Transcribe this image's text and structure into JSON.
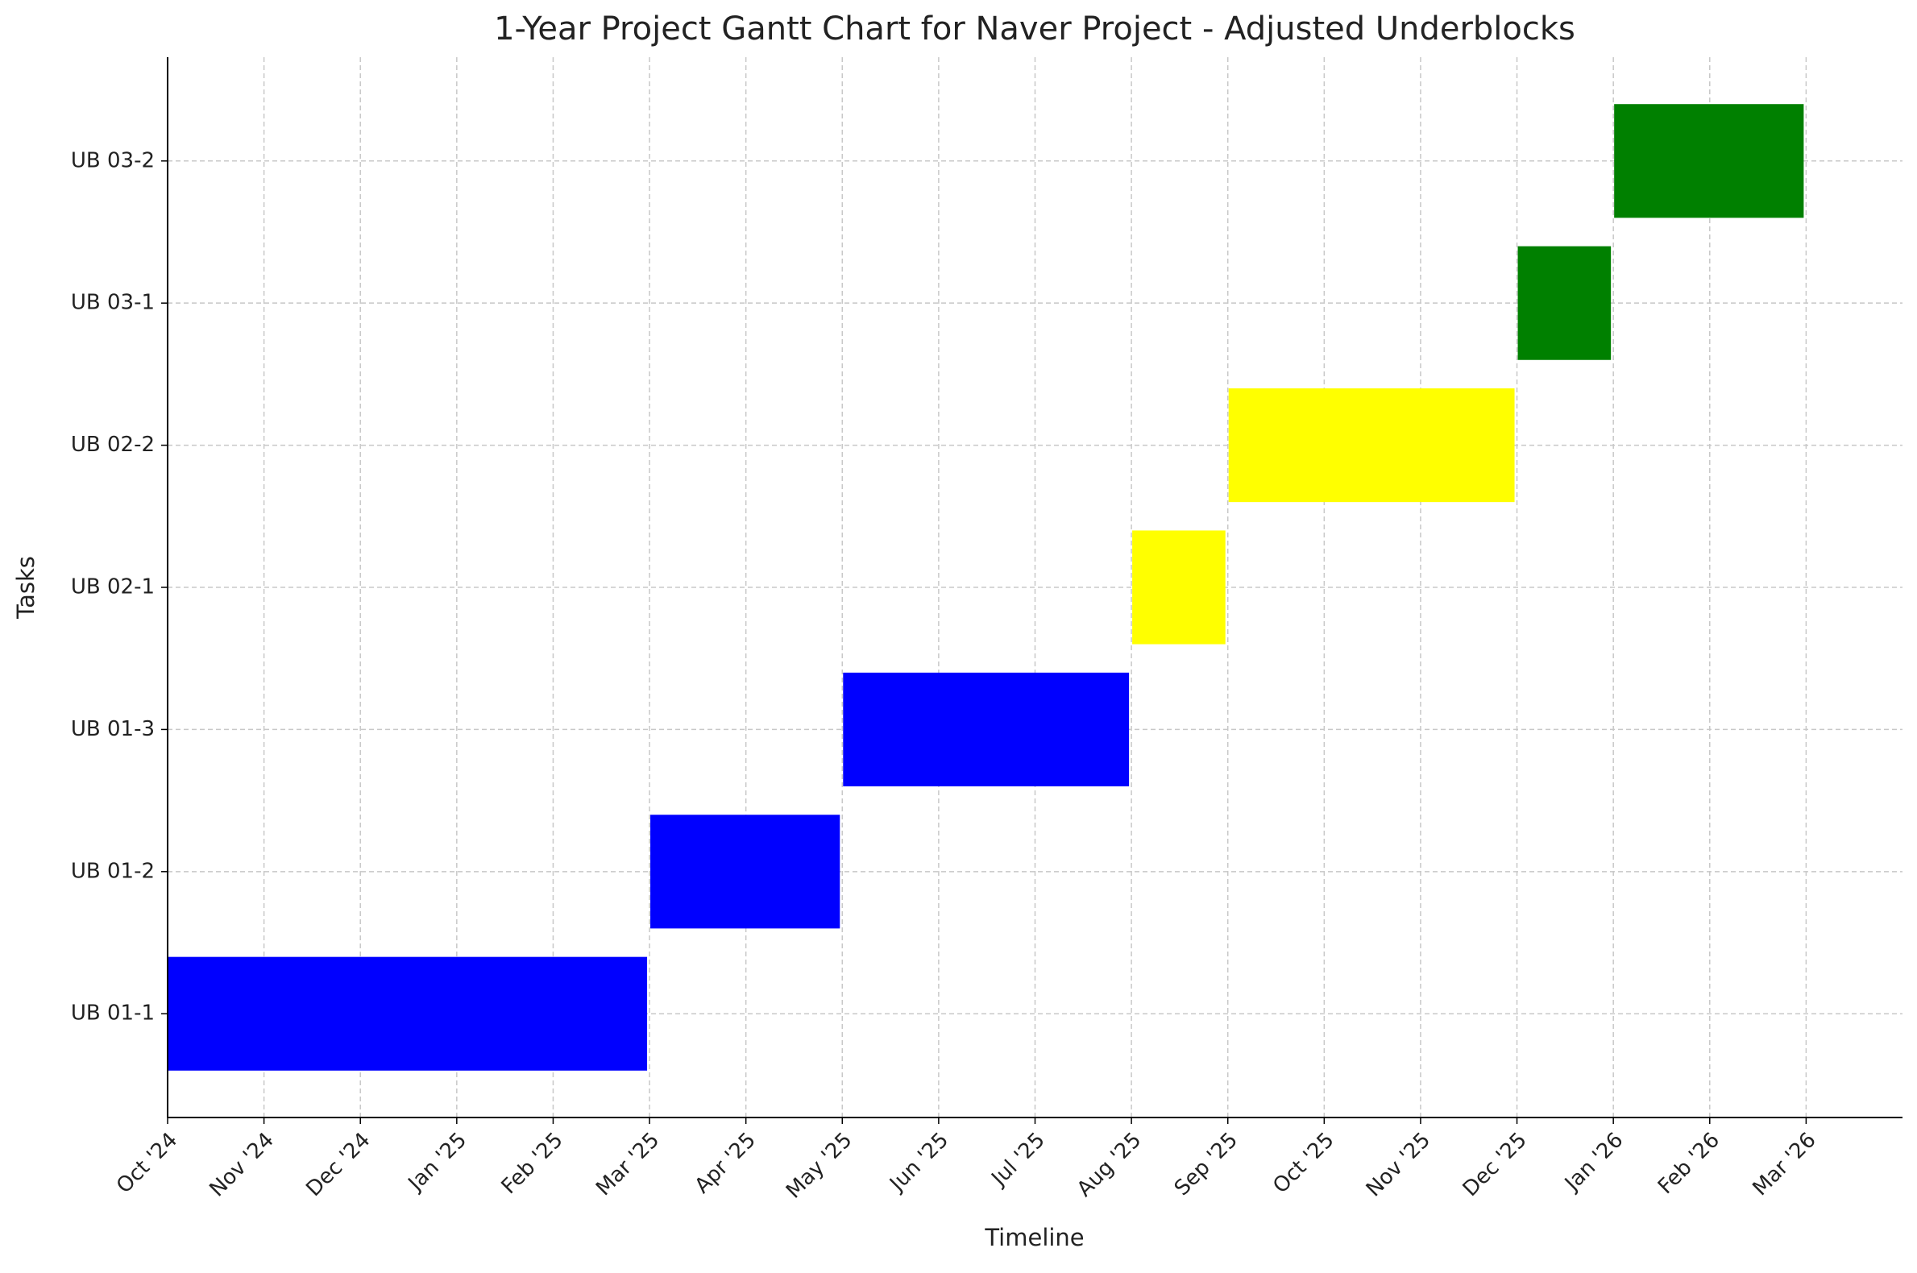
{
  "chart_data": {
    "type": "gantt",
    "title": "1-Year Project Gantt Chart for Naver Project - Adjusted Underblocks",
    "x_label": "Timeline",
    "y_label": "Tasks",
    "categories": [
      "UB 01-1",
      "UB 01-2",
      "UB 01-3",
      "UB 02-1",
      "UB 02-2",
      "UB 03-1",
      "UB 03-2"
    ],
    "start": [
      "2024-10",
      "2025-03",
      "2025-05",
      "2025-08",
      "2025-09",
      "2025-12",
      "2026-01"
    ],
    "end": [
      "2025-03",
      "2025-05",
      "2025-08",
      "2025-09",
      "2025-12",
      "2026-01",
      "2026-03"
    ],
    "colors": [
      "#0000ff",
      "#0000ff",
      "#0000ff",
      "#ffff00",
      "#ffff00",
      "#008000",
      "#008000"
    ],
    "xlim": [
      "2024-10",
      "2026-04"
    ],
    "xticks": [
      {
        "value": "2024-10",
        "label": "Oct '24"
      },
      {
        "value": "2024-11",
        "label": "Nov '24"
      },
      {
        "value": "2024-12",
        "label": "Dec '24"
      },
      {
        "value": "2025-01",
        "label": "Jan '25"
      },
      {
        "value": "2025-02",
        "label": "Feb '25"
      },
      {
        "value": "2025-03",
        "label": "Mar '25"
      },
      {
        "value": "2025-04",
        "label": "Apr '25"
      },
      {
        "value": "2025-05",
        "label": "May '25"
      },
      {
        "value": "2025-06",
        "label": "Jun '25"
      },
      {
        "value": "2025-07",
        "label": "Jul '25"
      },
      {
        "value": "2025-08",
        "label": "Aug '25"
      },
      {
        "value": "2025-09",
        "label": "Sep '25"
      },
      {
        "value": "2025-10",
        "label": "Oct '25"
      },
      {
        "value": "2025-11",
        "label": "Nov '25"
      },
      {
        "value": "2025-12",
        "label": "Dec '25"
      },
      {
        "value": "2026-01",
        "label": "Jan '26"
      },
      {
        "value": "2026-02",
        "label": "Feb '26"
      },
      {
        "value": "2026-03",
        "label": "Mar '26"
      }
    ],
    "grid": true
  }
}
